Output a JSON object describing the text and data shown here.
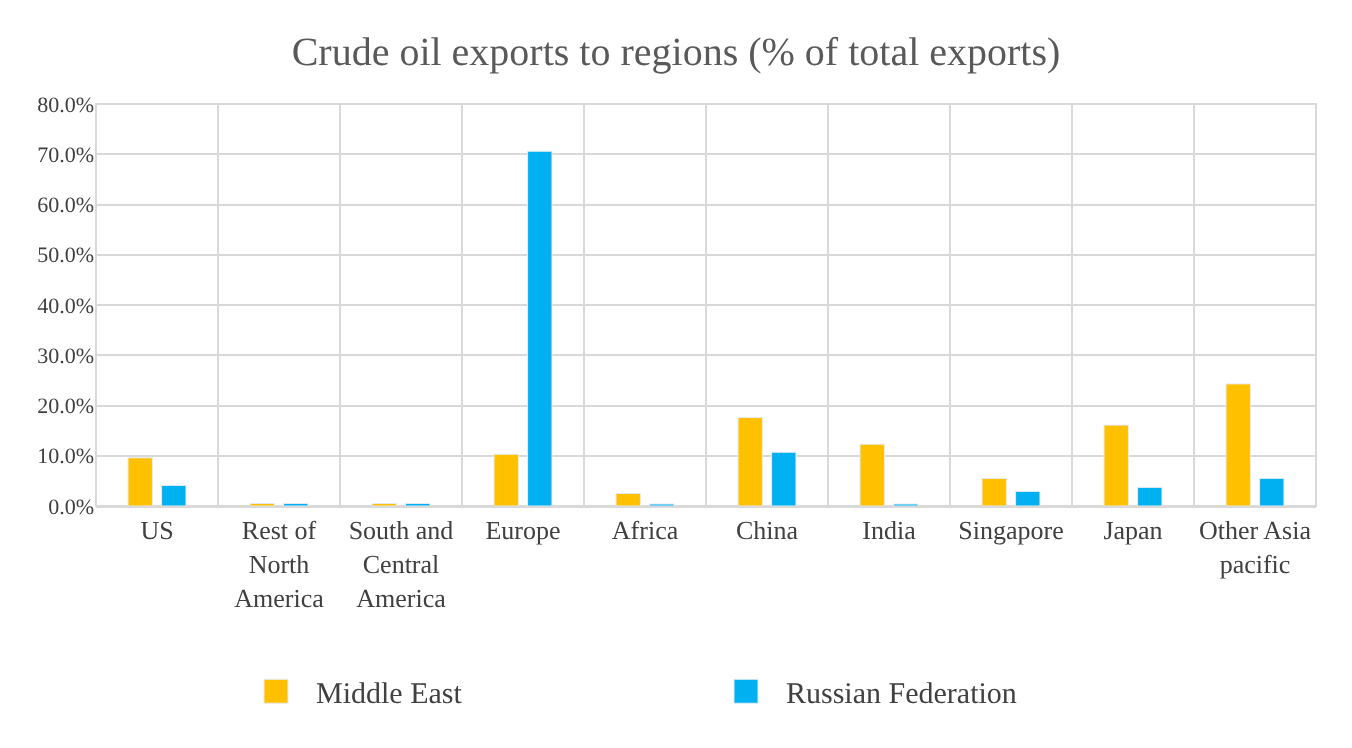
{
  "chart_data": {
    "type": "bar",
    "title": "Crude oil exports to regions (% of total exports)",
    "categories": [
      "US",
      "Rest of North America",
      "South and Central America",
      "Europe",
      "Africa",
      "China",
      "India",
      "Singapore",
      "Japan",
      "Other Asia pacific"
    ],
    "series": [
      {
        "name": "Middle East",
        "color": "#ffc000",
        "values": [
          9.6,
          0.5,
          0.5,
          10.3,
          2.5,
          17.6,
          12.3,
          5.5,
          16.1,
          24.3
        ]
      },
      {
        "name": "Russian Federation",
        "color": "#00b0f0",
        "values": [
          4.1,
          0.5,
          0.5,
          70.6,
          0.4,
          10.7,
          0.4,
          2.9,
          3.7,
          5.5
        ]
      }
    ],
    "ylim": [
      0,
      80
    ],
    "yticks": [
      {
        "value": 0,
        "label": "0.0%"
      },
      {
        "value": 10,
        "label": "10.0%"
      },
      {
        "value": 20,
        "label": "20.0%"
      },
      {
        "value": 30,
        "label": "30.0%"
      },
      {
        "value": 40,
        "label": "40.0%"
      },
      {
        "value": 50,
        "label": "50.0%"
      },
      {
        "value": 60,
        "label": "60.0%"
      },
      {
        "value": 70,
        "label": "70.0%"
      },
      {
        "value": 80,
        "label": "80.0%"
      }
    ],
    "grid": true,
    "legend": "bottom"
  }
}
